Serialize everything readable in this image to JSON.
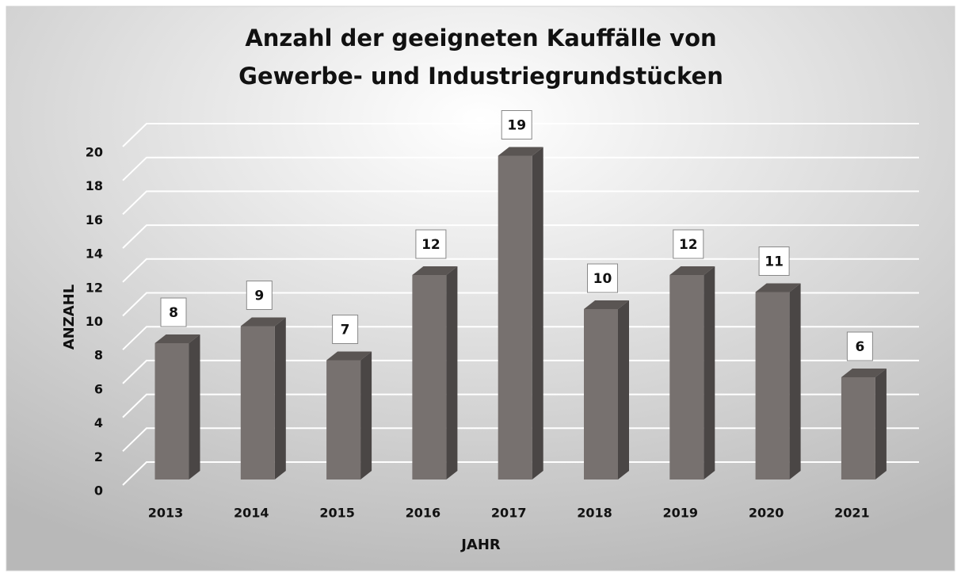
{
  "chart_data": {
    "type": "bar3d",
    "title": [
      "Anzahl der geeigneten Kauffälle von",
      "Gewerbe- und Industriegrundstücken"
    ],
    "x_label": "JAHR",
    "y_label": "ANZAHL",
    "categories": [
      "2013",
      "2014",
      "2015",
      "2016",
      "2017",
      "2018",
      "2019",
      "2020",
      "2021"
    ],
    "values": [
      8,
      9,
      7,
      12,
      19,
      10,
      12,
      11,
      6
    ],
    "color": "#77716f",
    "ylim": [
      0,
      20
    ],
    "yticks": [
      0,
      2,
      4,
      6,
      8,
      10,
      12,
      14,
      16,
      18,
      20
    ],
    "grid": true
  }
}
